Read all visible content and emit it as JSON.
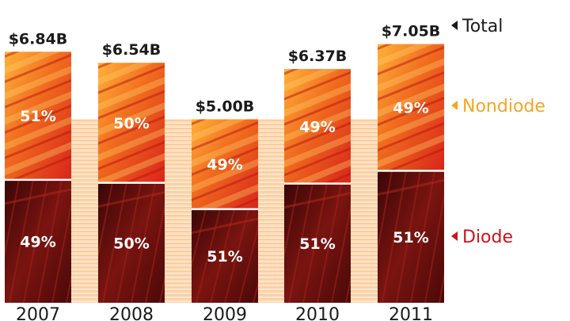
{
  "chart_data": {
    "type": "bar",
    "stacked": true,
    "categories": [
      "2007",
      "2008",
      "2009",
      "2010",
      "2011"
    ],
    "totals": [
      "$6.84B",
      "$6.54B",
      "$5.00B",
      "$6.37B",
      "$7.05B"
    ],
    "total_values": [
      6.84,
      6.54,
      5.0,
      6.37,
      7.05
    ],
    "series": [
      {
        "name": "Diode",
        "percent_values": [
          49,
          50,
          51,
          51,
          51
        ],
        "labels": [
          "49%",
          "50%",
          "51%",
          "51%",
          "51%"
        ]
      },
      {
        "name": "Nondiode",
        "percent_values": [
          51,
          50,
          49,
          49,
          49
        ],
        "labels": [
          "51%",
          "50%",
          "49%",
          "49%",
          "49%"
        ]
      }
    ],
    "legend": [
      {
        "name": "Total"
      },
      {
        "name": "Nondiode"
      },
      {
        "name": "Diode"
      }
    ],
    "colors": {
      "diode": "#5a0d0d",
      "diode_light": "#8e1a12",
      "nondiode": "#e8401a",
      "nondiode_light": "#ffb13a",
      "legend_total": "#1b1b1b",
      "legend_nondiode": "#f5a623",
      "legend_diode": "#d0121b",
      "band": "#fcd3a4"
    }
  }
}
